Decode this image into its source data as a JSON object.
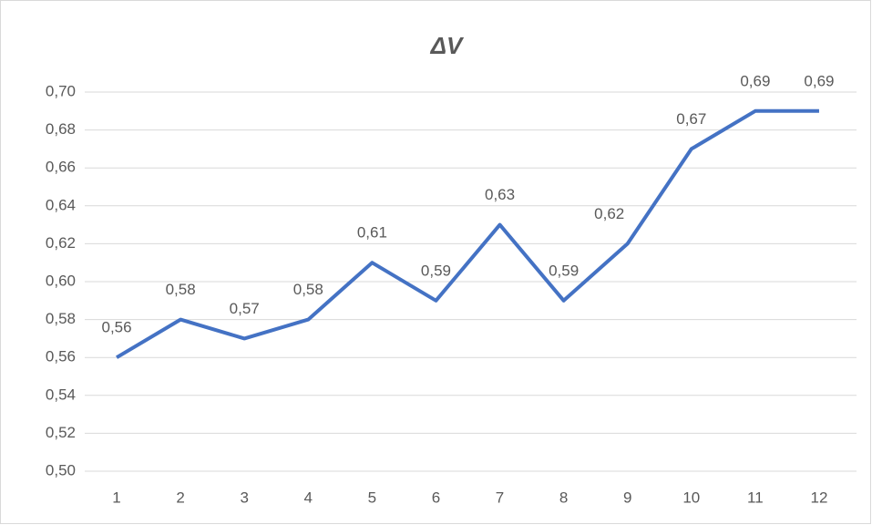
{
  "chart_data": {
    "type": "line",
    "title": "ΔV",
    "categories": [
      "1",
      "2",
      "3",
      "4",
      "5",
      "6",
      "7",
      "8",
      "9",
      "10",
      "11",
      "12"
    ],
    "series": [
      {
        "name": "ΔV",
        "color": "#4472c4",
        "values": [
          0.56,
          0.58,
          0.57,
          0.58,
          0.61,
          0.59,
          0.63,
          0.59,
          0.62,
          0.67,
          0.69,
          0.69
        ],
        "value_labels": [
          "0,56",
          "0,58",
          "0,57",
          "0,58",
          "0,61",
          "0,59",
          "0,63",
          "0,59",
          "0,62",
          "0,67",
          "0,69",
          "0,69"
        ]
      }
    ],
    "ylim": [
      0.5,
      0.7
    ],
    "yticks": [
      {
        "value": 0.5,
        "label": "0,50"
      },
      {
        "value": 0.52,
        "label": "0,52"
      },
      {
        "value": 0.54,
        "label": "0,54"
      },
      {
        "value": 0.56,
        "label": "0,56"
      },
      {
        "value": 0.58,
        "label": "0,58"
      },
      {
        "value": 0.6,
        "label": "0,60"
      },
      {
        "value": 0.62,
        "label": "0,62"
      },
      {
        "value": 0.64,
        "label": "0,64"
      },
      {
        "value": 0.66,
        "label": "0,66"
      },
      {
        "value": 0.68,
        "label": "0,68"
      },
      {
        "value": 0.7,
        "label": "0,70"
      }
    ],
    "grid": true
  }
}
